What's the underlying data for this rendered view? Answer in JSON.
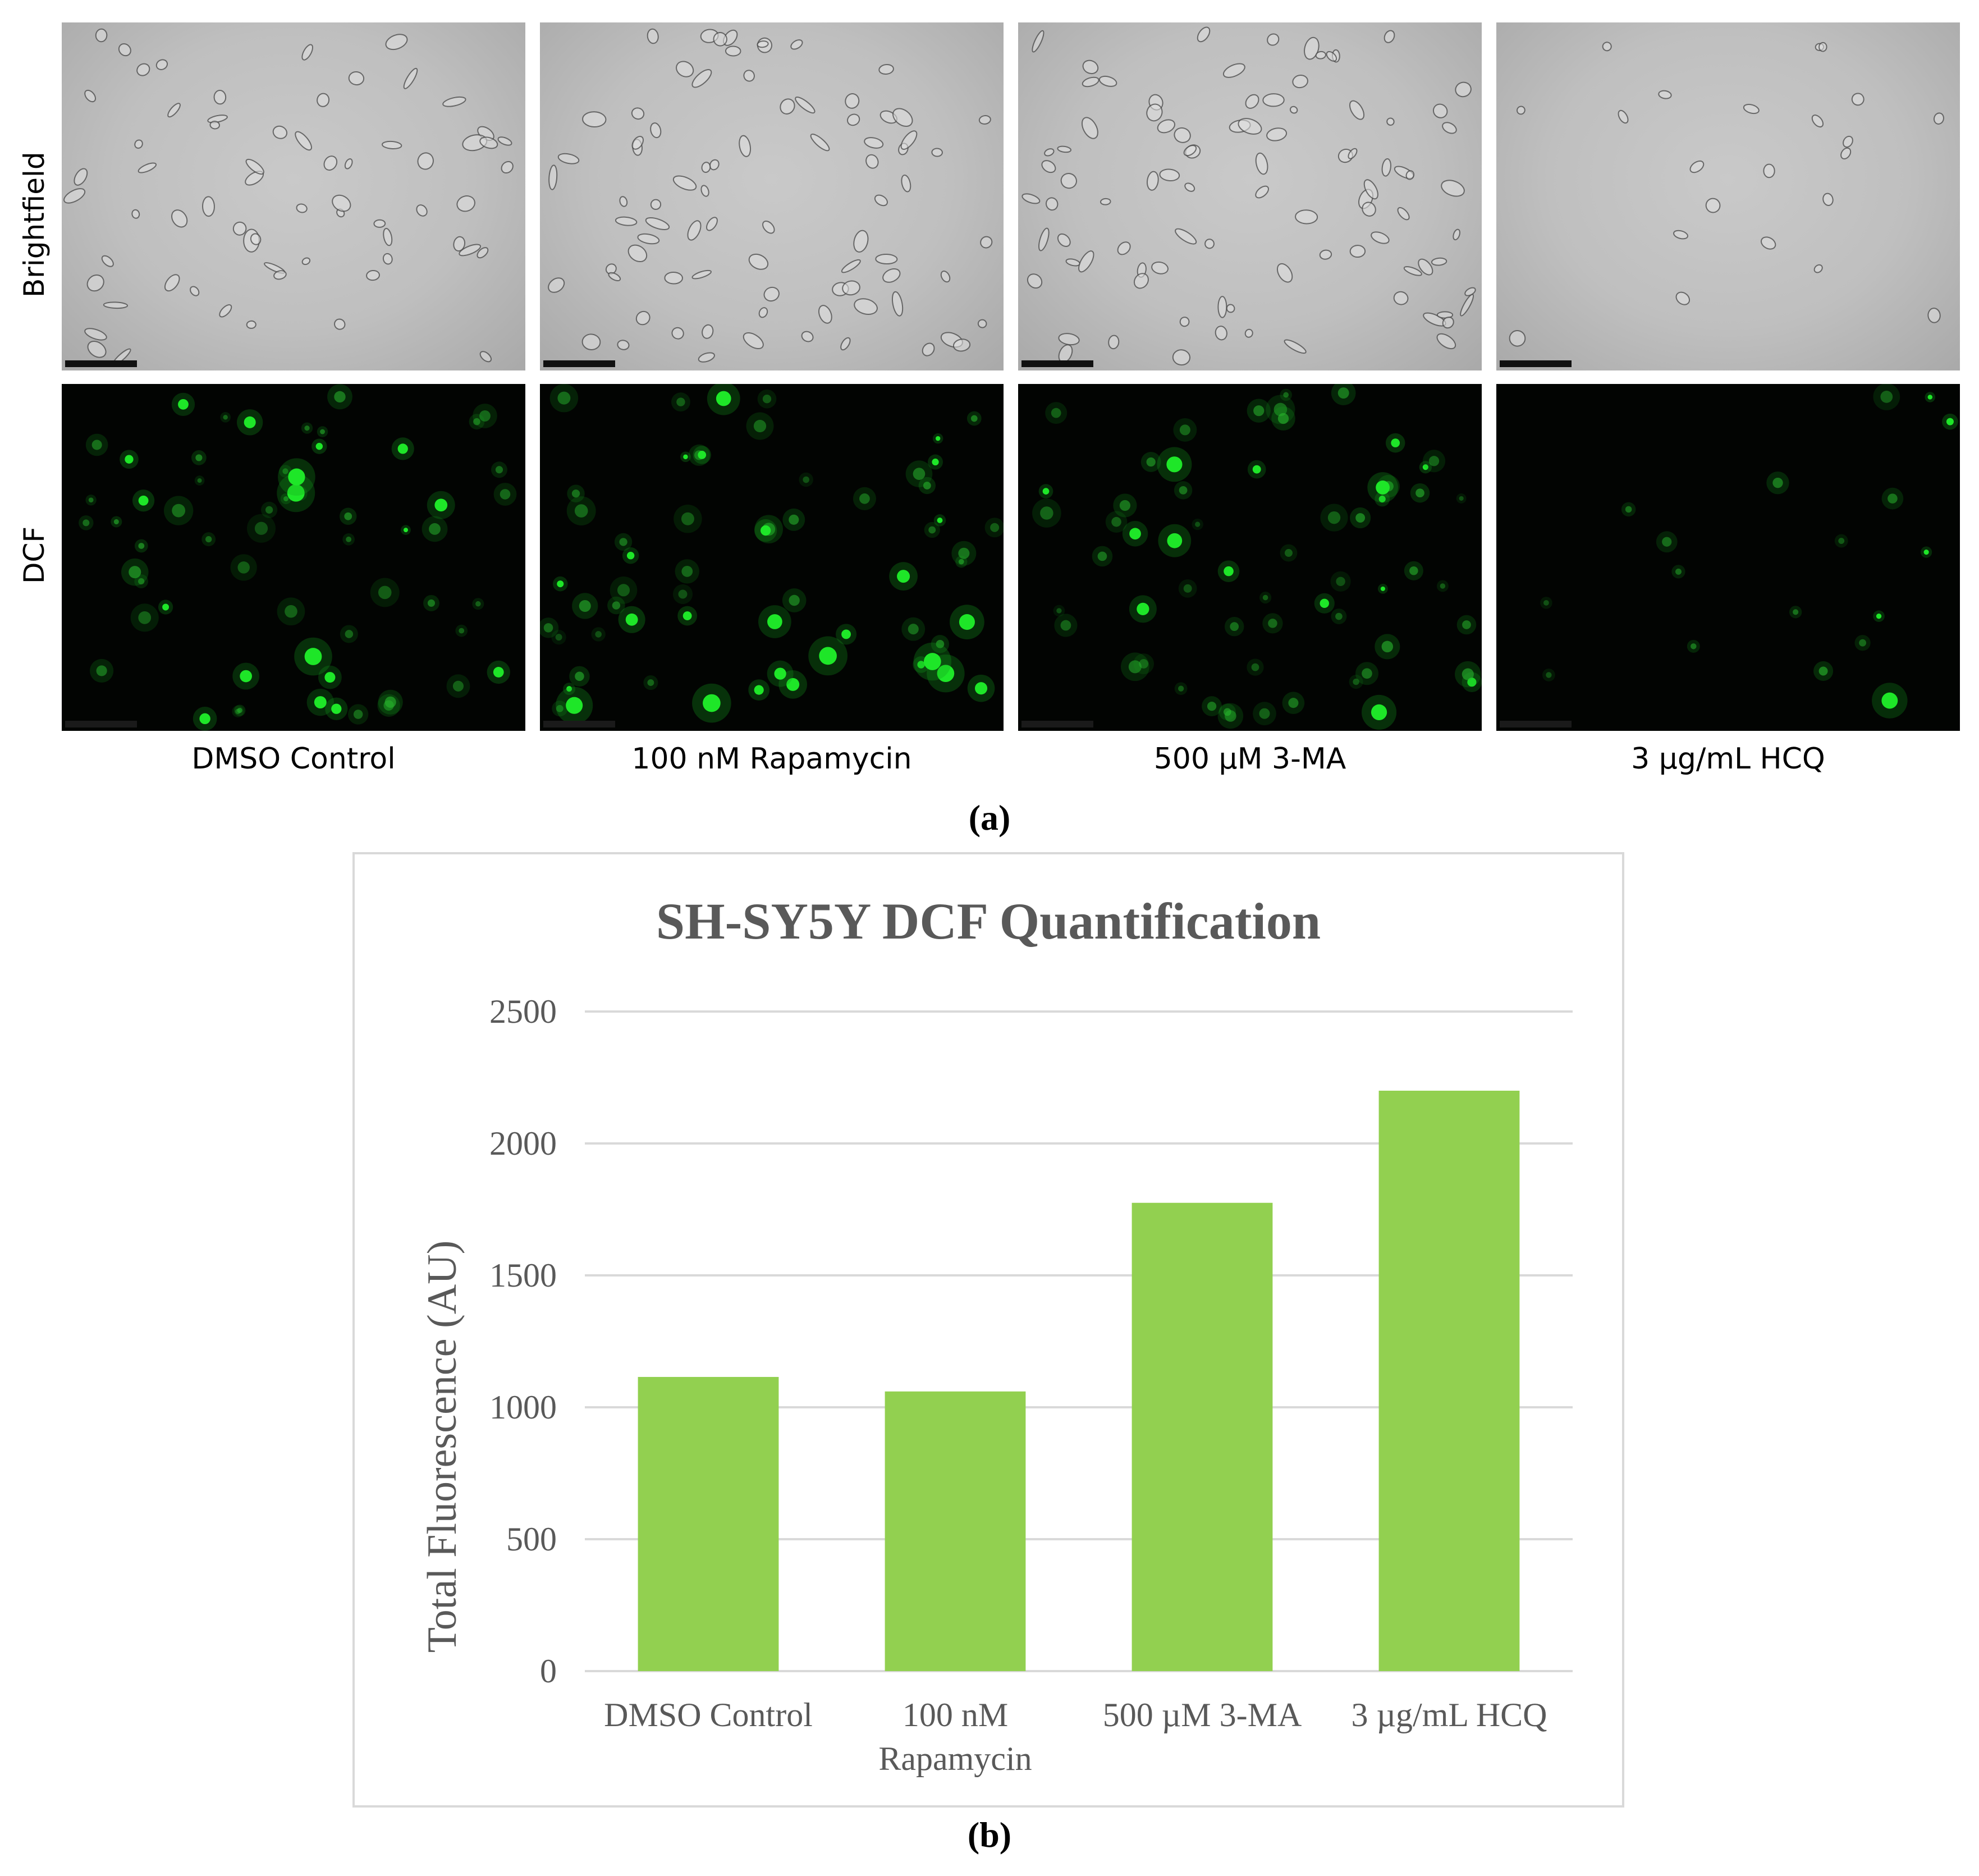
{
  "figure": {
    "panel_a_label": "(a)",
    "panel_b_label": "(b)",
    "row_labels": [
      "Brightfield",
      "DCF"
    ],
    "column_labels": [
      "DMSO Control",
      "100 nM Rapamycin",
      "500 µM 3-MA",
      "3 µg/mL HCQ"
    ]
  },
  "colors": {
    "bar": "#92d050",
    "gridline": "#d9d9d9",
    "text": "#595959",
    "fluorescence": "#1ee628"
  },
  "chart_data": {
    "type": "bar",
    "title": "SH-SY5Y DCF Quantification",
    "xlabel": "",
    "ylabel": "Total Fluorescence (AU)",
    "categories": [
      "DMSO Control",
      "100 nM Rapamycin",
      "500 µM 3-MA",
      "3 µg/mL HCQ"
    ],
    "category_lines": [
      [
        "DMSO Control"
      ],
      [
        "100 nM",
        "Rapamycin"
      ],
      [
        "500 µM 3-MA"
      ],
      [
        "3 µg/mL HCQ"
      ]
    ],
    "values": [
      1115,
      1060,
      1775,
      2200
    ],
    "ylim": [
      0,
      2500
    ],
    "yticks": [
      0,
      500,
      1000,
      1500,
      2000,
      2500
    ],
    "grid": true,
    "legend": "none"
  }
}
